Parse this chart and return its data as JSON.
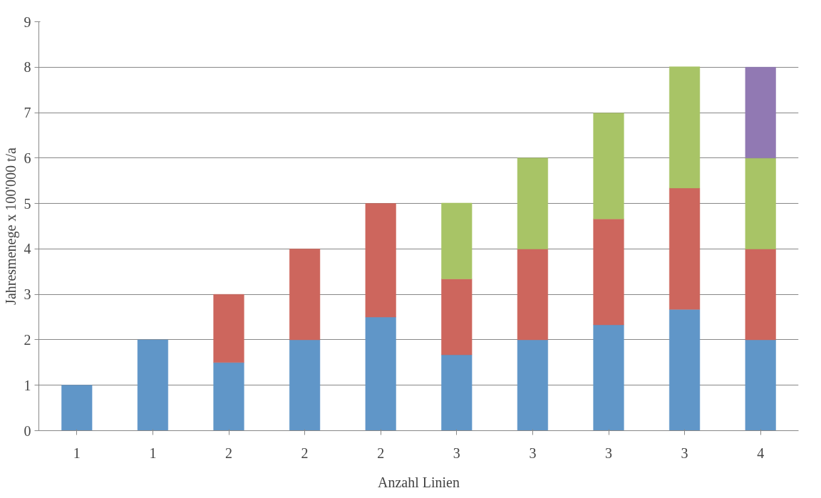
{
  "chart_data": {
    "type": "bar",
    "stacked": true,
    "xlabel": "Anzahl Linien",
    "ylabel": "Jahresmenege x 100'000 t/a",
    "categories": [
      "1",
      "1",
      "2",
      "2",
      "2",
      "3",
      "3",
      "3",
      "3",
      "4"
    ],
    "series": [
      {
        "color": "#6096c8",
        "values": [
          1,
          2,
          1.5,
          2,
          2.5,
          1.67,
          2,
          2.33,
          2.67,
          2
        ]
      },
      {
        "color": "#cd665d",
        "values": [
          null,
          null,
          1.5,
          2,
          2.5,
          1.67,
          2,
          2.33,
          2.67,
          2
        ]
      },
      {
        "color": "#a8c466",
        "values": [
          null,
          null,
          null,
          null,
          null,
          1.67,
          2,
          2.33,
          2.67,
          2
        ]
      },
      {
        "color": "#9179b3",
        "values": [
          null,
          null,
          null,
          null,
          null,
          null,
          null,
          null,
          null,
          2
        ]
      }
    ],
    "ylim": [
      0,
      9
    ],
    "yticks": [
      0,
      1,
      2,
      3,
      4,
      5,
      6,
      7,
      8,
      9
    ],
    "grid": "y"
  }
}
